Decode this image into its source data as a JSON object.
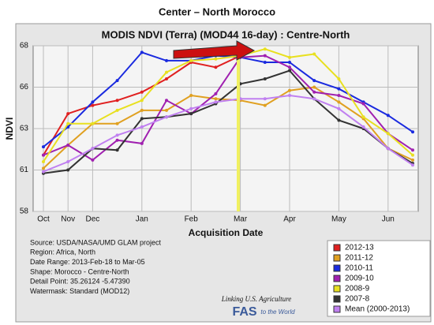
{
  "heading": "Center – North Morocco",
  "chart_data": {
    "type": "line",
    "title": "MODIS NDVI (Terra) (MOD44 16-day) : Centre-North",
    "x_label": "Acquisition Date",
    "y_label": "NDVI",
    "categories": [
      "Oct",
      "Nov",
      "Dec",
      null,
      "Jan",
      null,
      "Feb",
      null,
      "Mar",
      null,
      "Apr",
      null,
      "May",
      null,
      "Jun",
      null
    ],
    "ylim": [
      58,
      68
    ],
    "yticks": [
      58,
      {
        "value": 60.5,
        "label": "61"
      },
      63,
      {
        "value": 65.5,
        "label": "66"
      },
      68
    ],
    "grid": true,
    "legend": "bottom-right",
    "series": [
      {
        "name": "2012-13",
        "color": "#e02020",
        "values": [
          61.4,
          63.9,
          64.4,
          64.7,
          65.2,
          66.0,
          67.0,
          66.7,
          67.4,
          null,
          null,
          null,
          null,
          null,
          null,
          null
        ]
      },
      {
        "name": "2011-12",
        "color": "#e0a020",
        "values": [
          60.6,
          62.0,
          63.3,
          63.3,
          64.1,
          64.1,
          65.0,
          64.8,
          64.7,
          64.4,
          65.3,
          65.5,
          64.6,
          63.6,
          61.8,
          61.1
        ]
      },
      {
        "name": "2010-11",
        "color": "#1a2adf",
        "values": [
          61.9,
          63.1,
          64.6,
          65.9,
          67.6,
          67.1,
          67.1,
          67.4,
          67.3,
          67.0,
          67.0,
          65.9,
          65.4,
          64.6,
          63.8,
          62.8
        ]
      },
      {
        "name": "2009-10",
        "color": "#a020b0",
        "values": [
          61.4,
          62.0,
          61.1,
          62.3,
          62.1,
          64.7,
          63.9,
          65.1,
          67.3,
          67.4,
          66.7,
          65.2,
          65.0,
          64.5,
          62.7,
          61.7
        ]
      },
      {
        "name": "2008-9",
        "color": "#e8e020",
        "values": [
          61.0,
          63.3,
          63.3,
          64.1,
          64.7,
          66.4,
          67.1,
          67.2,
          67.4,
          67.8,
          67.3,
          67.5,
          66.0,
          63.7,
          62.7,
          61.4
        ]
      },
      {
        "name": "2007-8",
        "color": "#333333",
        "values": [
          60.3,
          60.5,
          61.8,
          61.7,
          63.6,
          63.7,
          63.9,
          64.5,
          65.7,
          66.0,
          66.5,
          64.8,
          63.5,
          63.0,
          61.8,
          60.9
        ]
      },
      {
        "name": "Mean (2000-2013)",
        "color": "#c080f0",
        "values": [
          60.4,
          61.0,
          61.8,
          62.6,
          63.1,
          63.7,
          64.2,
          64.6,
          64.8,
          64.8,
          65.0,
          64.8,
          64.2,
          63.1,
          61.8,
          60.8
        ]
      }
    ],
    "info": [
      "Source: USDA/NASA/UMD GLAM project",
      "Region: Africa, North",
      "Date Range: 2013-Feb-18 to Mar-05",
      "Shape: Morocco - Centre-North",
      "Detail Point: 35.26124 -5.47390",
      "Watermask: Standard (MOD12)"
    ],
    "logo": [
      "Linking U.S. Agriculture",
      "FAS",
      "to the World"
    ]
  }
}
